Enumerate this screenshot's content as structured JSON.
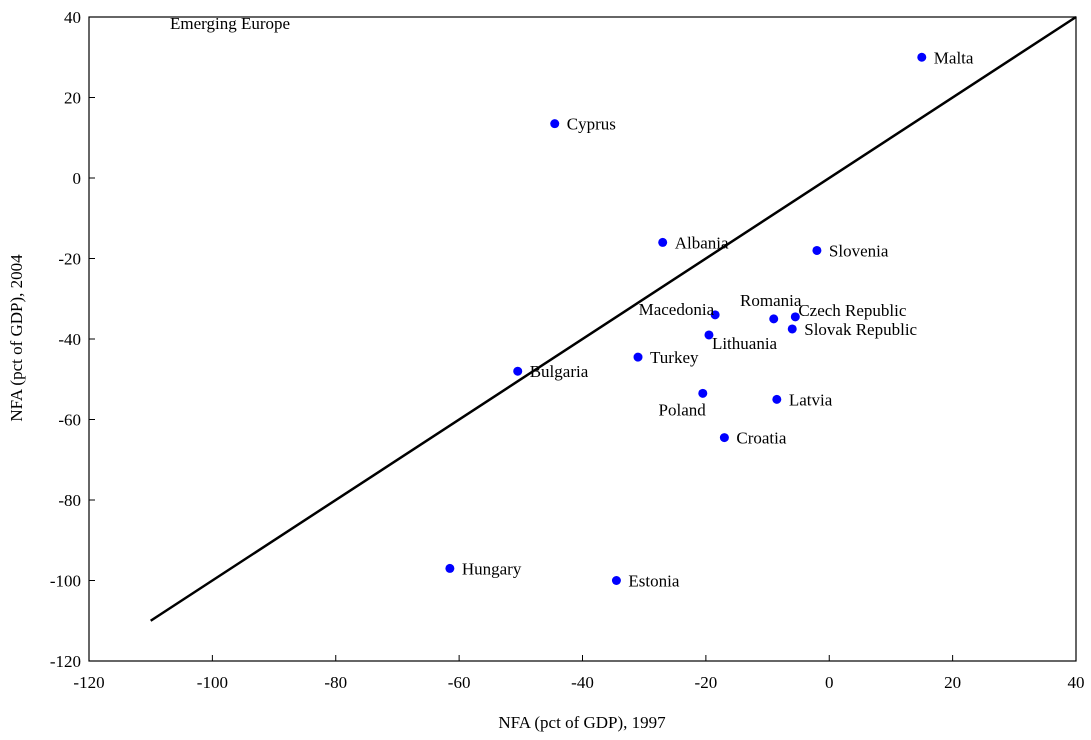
{
  "chart_data": {
    "type": "scatter",
    "annotation": "Emerging Europe",
    "xlabel": "NFA (pct of GDP), 1997",
    "ylabel": "NFA (pct of GDP), 2004",
    "xlim": [
      -120,
      40
    ],
    "ylim": [
      -120,
      40
    ],
    "xticks": [
      -120,
      -100,
      -80,
      -60,
      -40,
      -20,
      0,
      20,
      40
    ],
    "yticks": [
      -120,
      -100,
      -80,
      -60,
      -40,
      -20,
      0,
      20,
      40
    ],
    "point_color": "#0000ff",
    "reference_line": {
      "from": [
        -110,
        -110
      ],
      "to": [
        40,
        40
      ]
    },
    "points": [
      {
        "label": "Malta",
        "x": 15,
        "y": 30
      },
      {
        "label": "Cyprus",
        "x": -44.5,
        "y": 13.5
      },
      {
        "label": "Albania",
        "x": -27,
        "y": -16
      },
      {
        "label": "Slovenia",
        "x": -2,
        "y": -18
      },
      {
        "label": "Romania",
        "x": -9,
        "y": -35
      },
      {
        "label": "Czech Republic",
        "x": -5.5,
        "y": -34.5
      },
      {
        "label": "Slovak Republic",
        "x": -6,
        "y": -37.5
      },
      {
        "label": "Macedonia",
        "x": -18.5,
        "y": -34
      },
      {
        "label": "Lithuania",
        "x": -19.5,
        "y": -39
      },
      {
        "label": "Turkey",
        "x": -31,
        "y": -44.5
      },
      {
        "label": "Bulgaria",
        "x": -50.5,
        "y": -48
      },
      {
        "label": "Poland",
        "x": -20.5,
        "y": -53.5
      },
      {
        "label": "Latvia",
        "x": -8.5,
        "y": -55
      },
      {
        "label": "Croatia",
        "x": -17,
        "y": -64.5
      },
      {
        "label": "Hungary",
        "x": -61.5,
        "y": -97
      },
      {
        "label": "Estonia",
        "x": -34.5,
        "y": -100
      }
    ]
  }
}
